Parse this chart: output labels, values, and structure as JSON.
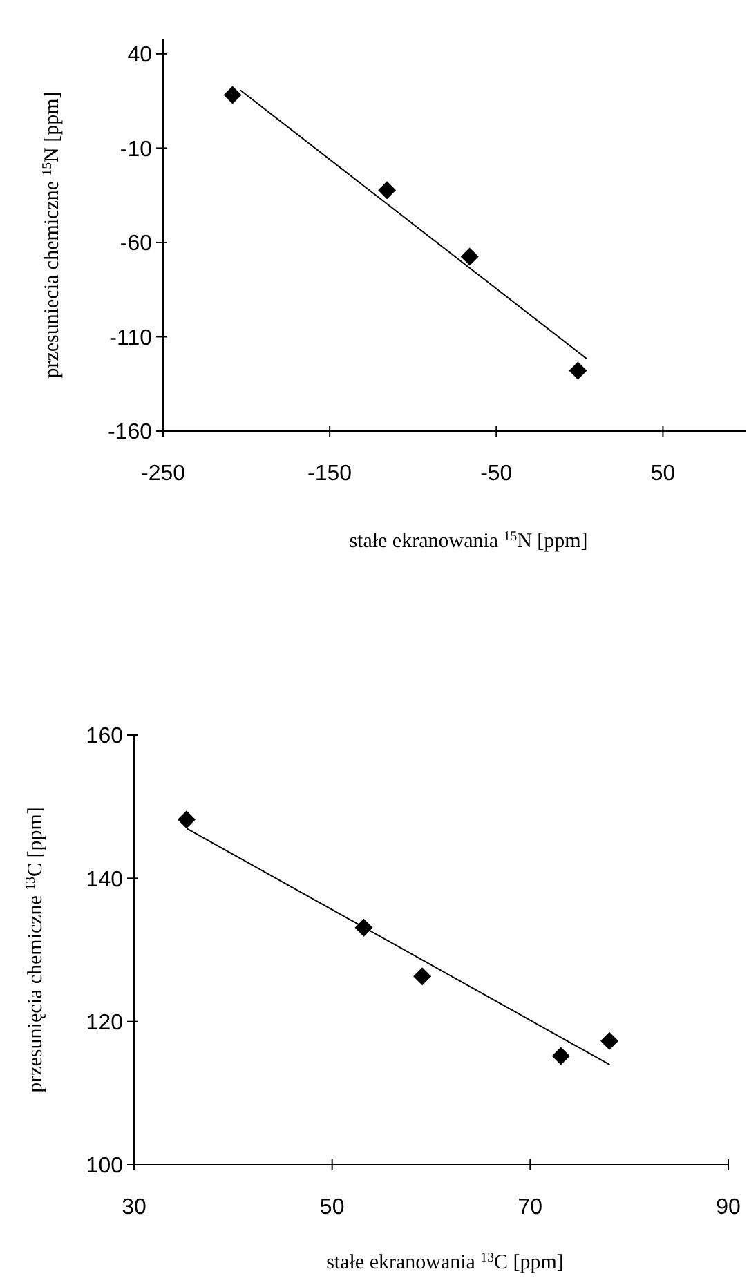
{
  "chart_data": [
    {
      "type": "scatter",
      "xlabel": "stałe ekranowania $^{15}$N [ppm]",
      "ylabel": "przesuniecia chemiczne $^{15}$N [ppm]",
      "xlim": [
        -250,
        100
      ],
      "ylim": [
        -160,
        48
      ],
      "xticks": [
        -250,
        -150,
        -50,
        50
      ],
      "yticks": [
        -160,
        -110,
        -60,
        -10,
        40
      ],
      "series": [
        {
          "marker": "diamond",
          "color": "#000000",
          "x": [
            -208.3,
            -115.6,
            -66,
            -1
          ],
          "values": [
            18.2,
            -32.3,
            -67.5,
            -128
          ]
        },
        {
          "type": "line",
          "color": "#000000",
          "x": [
            -203.5,
            3.9
          ],
          "values": [
            20.6,
            -121.4
          ]
        }
      ]
    },
    {
      "type": "scatter",
      "xlabel": "stałe ekranowania $^{13}$C [ppm]",
      "ylabel": "przesunięcia chemiczne $^{13}$C [ppm]",
      "xlim": [
        30,
        90
      ],
      "ylim": [
        100,
        160
      ],
      "xticks": [
        30,
        50,
        70,
        90
      ],
      "yticks": [
        100,
        120,
        140,
        160
      ],
      "series": [
        {
          "marker": "diamond",
          "color": "#000000",
          "x": [
            35.3,
            53.2,
            59.1,
            73.1,
            78.0
          ],
          "values": [
            148.2,
            133.1,
            126.3,
            115.2,
            117.3
          ]
        },
        {
          "type": "line",
          "color": "#000000",
          "x": [
            35.4,
            78.0
          ],
          "values": [
            146.9,
            114.0
          ]
        }
      ]
    }
  ]
}
